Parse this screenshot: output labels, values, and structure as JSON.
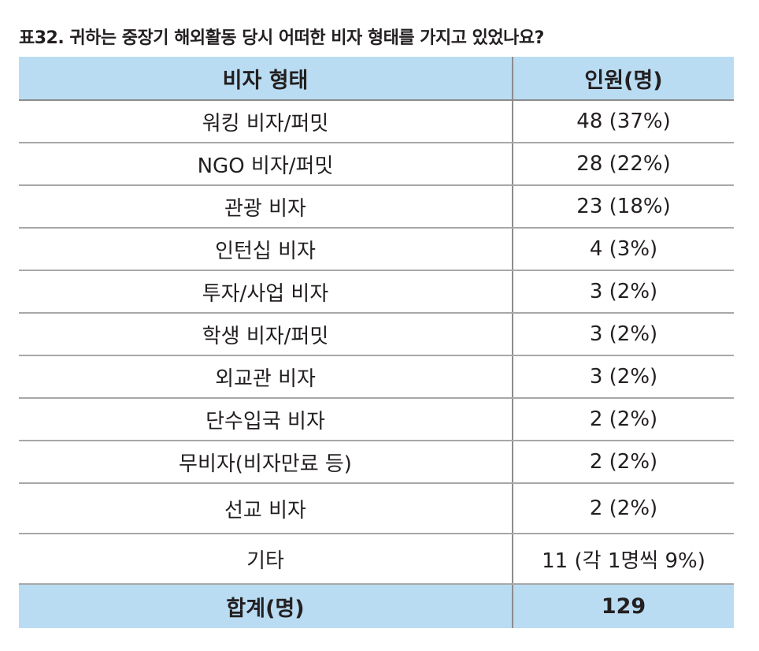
{
  "caption": "표32. 귀하는 중장기 해외활동 당시 어떠한 비자 형태를 가지고 있었나요?",
  "table": {
    "headers": [
      "비자 형태",
      "인원(명)"
    ],
    "rows": [
      {
        "type": "워킹 비자/퍼밋",
        "count": "48 (37%)"
      },
      {
        "type": "NGO 비자/퍼밋",
        "count": "28 (22%)"
      },
      {
        "type": "관광 비자",
        "count": "23 (18%)"
      },
      {
        "type": "인턴십 비자",
        "count": "4 (3%)"
      },
      {
        "type": "투자/사업 비자",
        "count": "3 (2%)"
      },
      {
        "type": "학생 비자/퍼밋",
        "count": "3 (2%)"
      },
      {
        "type": "외교관 비자",
        "count": "3 (2%)"
      },
      {
        "type": "단수입국 비자",
        "count": "2 (2%)"
      },
      {
        "type": "무비자(비자만료 등)",
        "count": "2 (2%)"
      },
      {
        "type": "선교 비자",
        "count": "2 (2%)"
      },
      {
        "type": "기타",
        "count": "11 (각 1명씩 9%)"
      }
    ],
    "footer": {
      "label": "합계(명)",
      "value": "129"
    }
  },
  "colors": {
    "header_bg": "#b9dcf2",
    "text": "#231f20",
    "divider": "#a8a8a8"
  }
}
